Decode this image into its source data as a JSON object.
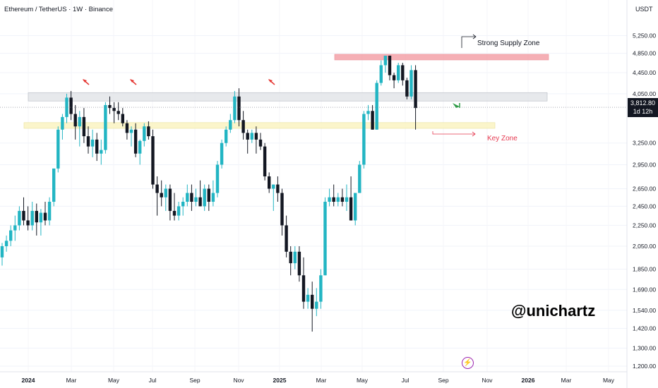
{
  "header": {
    "symbol_title": "Ethereum / TetherUS · 1W · Binance",
    "currency": "USDT"
  },
  "watermark": "@unichartz",
  "price_tag": {
    "price": "3,812.80",
    "countdown": "1d 12h"
  },
  "colors": {
    "up": "#22b5c3",
    "down": "#131722",
    "supply_zone": "#f4a7ad",
    "key_zone": "#fbf5c6",
    "resistance_zone": "#e5e7ea",
    "red_flag": "#e53935",
    "green_arrow": "#2e9b47"
  },
  "chart_data": {
    "type": "candlestick",
    "title": "",
    "xlabel": "",
    "ylabel": "",
    "x_tick_labels": [
      "2024",
      "Mar",
      "May",
      "Jul",
      "Sep",
      "Nov",
      "2025",
      "Mar",
      "May",
      "Jul",
      "Sep",
      "Nov",
      "2026",
      "Mar",
      "May"
    ],
    "y_tick_labels": [
      "5,250.00",
      "4,850.00",
      "4,450.00",
      "4,050.00",
      "3,250.00",
      "2,950.00",
      "2,650.00",
      "2,450.00",
      "2,250.00",
      "2,050.00",
      "1,850.00",
      "1,690.00",
      "1,540.00",
      "1,420.00",
      "1,300.00",
      "1,200.00"
    ],
    "y_scale": "log",
    "ylim": [
      1170,
      5600
    ],
    "x_range": [
      "2023-12-11",
      "2026-06-22"
    ],
    "candles_ohlc": [
      [
        1950,
        2080,
        1880,
        2050
      ],
      [
        2050,
        2150,
        2000,
        2100
      ],
      [
        2100,
        2250,
        2050,
        2200
      ],
      [
        2200,
        2350,
        2100,
        2250
      ],
      [
        2250,
        2450,
        2200,
        2400
      ],
      [
        2400,
        2550,
        2250,
        2300
      ],
      [
        2300,
        2450,
        2200,
        2250
      ],
      [
        2250,
        2500,
        2200,
        2400
      ],
      [
        2400,
        2480,
        2150,
        2280
      ],
      [
        2280,
        2420,
        2150,
        2380
      ],
      [
        2380,
        2500,
        2250,
        2300
      ],
      [
        2300,
        2550,
        2250,
        2500
      ],
      [
        2500,
        2900,
        2450,
        2900
      ],
      [
        2900,
        3500,
        2850,
        3450
      ],
      [
        3450,
        3700,
        3300,
        3650
      ],
      [
        3650,
        4050,
        3550,
        3980
      ],
      [
        3980,
        4100,
        3600,
        3700
      ],
      [
        3700,
        3850,
        3300,
        3500
      ],
      [
        3500,
        3750,
        3200,
        3650
      ],
      [
        3650,
        3800,
        3250,
        3350
      ],
      [
        3350,
        3500,
        3100,
        3200
      ],
      [
        3200,
        3450,
        3050,
        3300
      ],
      [
        3300,
        3400,
        3000,
        3100
      ],
      [
        3100,
        3300,
        2950,
        3150
      ],
      [
        3150,
        3900,
        3100,
        3850
      ],
      [
        3850,
        4000,
        3700,
        3800
      ],
      [
        3800,
        3900,
        3550,
        3750
      ],
      [
        3750,
        3900,
        3600,
        3700
      ],
      [
        3700,
        3800,
        3500,
        3550
      ],
      [
        3550,
        3600,
        3300,
        3400
      ],
      [
        3400,
        3500,
        3200,
        3450
      ],
      [
        3450,
        3550,
        3050,
        3100
      ],
      [
        3100,
        3300,
        2950,
        3280
      ],
      [
        3280,
        3550,
        3200,
        3500
      ],
      [
        3500,
        3580,
        3300,
        3350
      ],
      [
        3350,
        3450,
        2650,
        2700
      ],
      [
        2700,
        2800,
        2350,
        2600
      ],
      [
        2600,
        2750,
        2450,
        2550
      ],
      [
        2550,
        2700,
        2400,
        2650
      ],
      [
        2650,
        2700,
        2300,
        2400
      ],
      [
        2400,
        2600,
        2300,
        2350
      ],
      [
        2350,
        2500,
        2300,
        2450
      ],
      [
        2450,
        2550,
        2350,
        2500
      ],
      [
        2500,
        2700,
        2450,
        2600
      ],
      [
        2600,
        2700,
        2400,
        2500
      ],
      [
        2500,
        2650,
        2450,
        2550
      ],
      [
        2550,
        2750,
        2450,
        2450
      ],
      [
        2450,
        2700,
        2400,
        2650
      ],
      [
        2650,
        2700,
        2400,
        2500
      ],
      [
        2500,
        2750,
        2450,
        2600
      ],
      [
        2600,
        3000,
        2550,
        2950
      ],
      [
        2950,
        3300,
        2900,
        3250
      ],
      [
        3250,
        3500,
        3200,
        3450
      ],
      [
        3450,
        3700,
        3400,
        3600
      ],
      [
        3600,
        4100,
        3550,
        4000
      ],
      [
        4000,
        4150,
        3500,
        3600
      ],
      [
        3600,
        3750,
        3300,
        3400
      ],
      [
        3400,
        3450,
        3100,
        3300
      ],
      [
        3300,
        3450,
        3250,
        3400
      ],
      [
        3400,
        3500,
        3100,
        3300
      ],
      [
        3300,
        3400,
        3150,
        3200
      ],
      [
        3200,
        3250,
        2750,
        2800
      ],
      [
        2800,
        2850,
        2600,
        2650
      ],
      [
        2650,
        2700,
        2400,
        2700
      ],
      [
        2700,
        2800,
        2500,
        2600
      ],
      [
        2600,
        2650,
        2150,
        2250
      ],
      [
        2250,
        2350,
        1950,
        2000
      ],
      [
        2000,
        2050,
        1800,
        1900
      ],
      [
        1900,
        2050,
        1850,
        2000
      ],
      [
        2000,
        2050,
        1750,
        1800
      ],
      [
        1800,
        1950,
        1550,
        1600
      ],
      [
        1600,
        1700,
        1550,
        1650
      ],
      [
        1650,
        1750,
        1400,
        1550
      ],
      [
        1550,
        1700,
        1500,
        1600
      ],
      [
        1600,
        1850,
        1550,
        1800
      ],
      [
        1800,
        2550,
        1800,
        2500
      ],
      [
        2500,
        2650,
        2450,
        2550
      ],
      [
        2550,
        2700,
        2450,
        2500
      ],
      [
        2500,
        2600,
        2450,
        2550
      ],
      [
        2550,
        2650,
        2450,
        2500
      ],
      [
        2500,
        2700,
        2400,
        2550
      ],
      [
        2550,
        2800,
        2300,
        2300
      ],
      [
        2300,
        2600,
        2250,
        2600
      ],
      [
        2600,
        3000,
        2600,
        2950
      ],
      [
        2950,
        3750,
        2900,
        3700
      ],
      [
        3700,
        3850,
        3600,
        3750
      ],
      [
        3750,
        3850,
        3450,
        3450
      ],
      [
        3450,
        4300,
        3450,
        4250
      ],
      [
        4250,
        4700,
        4200,
        4600
      ],
      [
        4600,
        4800,
        4450,
        4800
      ],
      [
        4800,
        4800,
        4300,
        4400
      ],
      [
        4400,
        4450,
        4150,
        4300
      ],
      [
        4300,
        4650,
        4250,
        4600
      ],
      [
        4600,
        4650,
        4200,
        4300
      ],
      [
        4300,
        4350,
        3950,
        4000
      ],
      [
        4000,
        4600,
        3950,
        4500
      ],
      [
        4500,
        4600,
        3450,
        3800
      ]
    ],
    "zones": [
      {
        "label": "Strong Supply Zone",
        "low": 4710,
        "high": 4830
      },
      {
        "label": "",
        "low": 3920,
        "high": 4070
      },
      {
        "label": "Key Zone",
        "low": 3470,
        "high": 3560
      }
    ],
    "last_price": 3812.8,
    "grid": true,
    "legend": "none"
  }
}
